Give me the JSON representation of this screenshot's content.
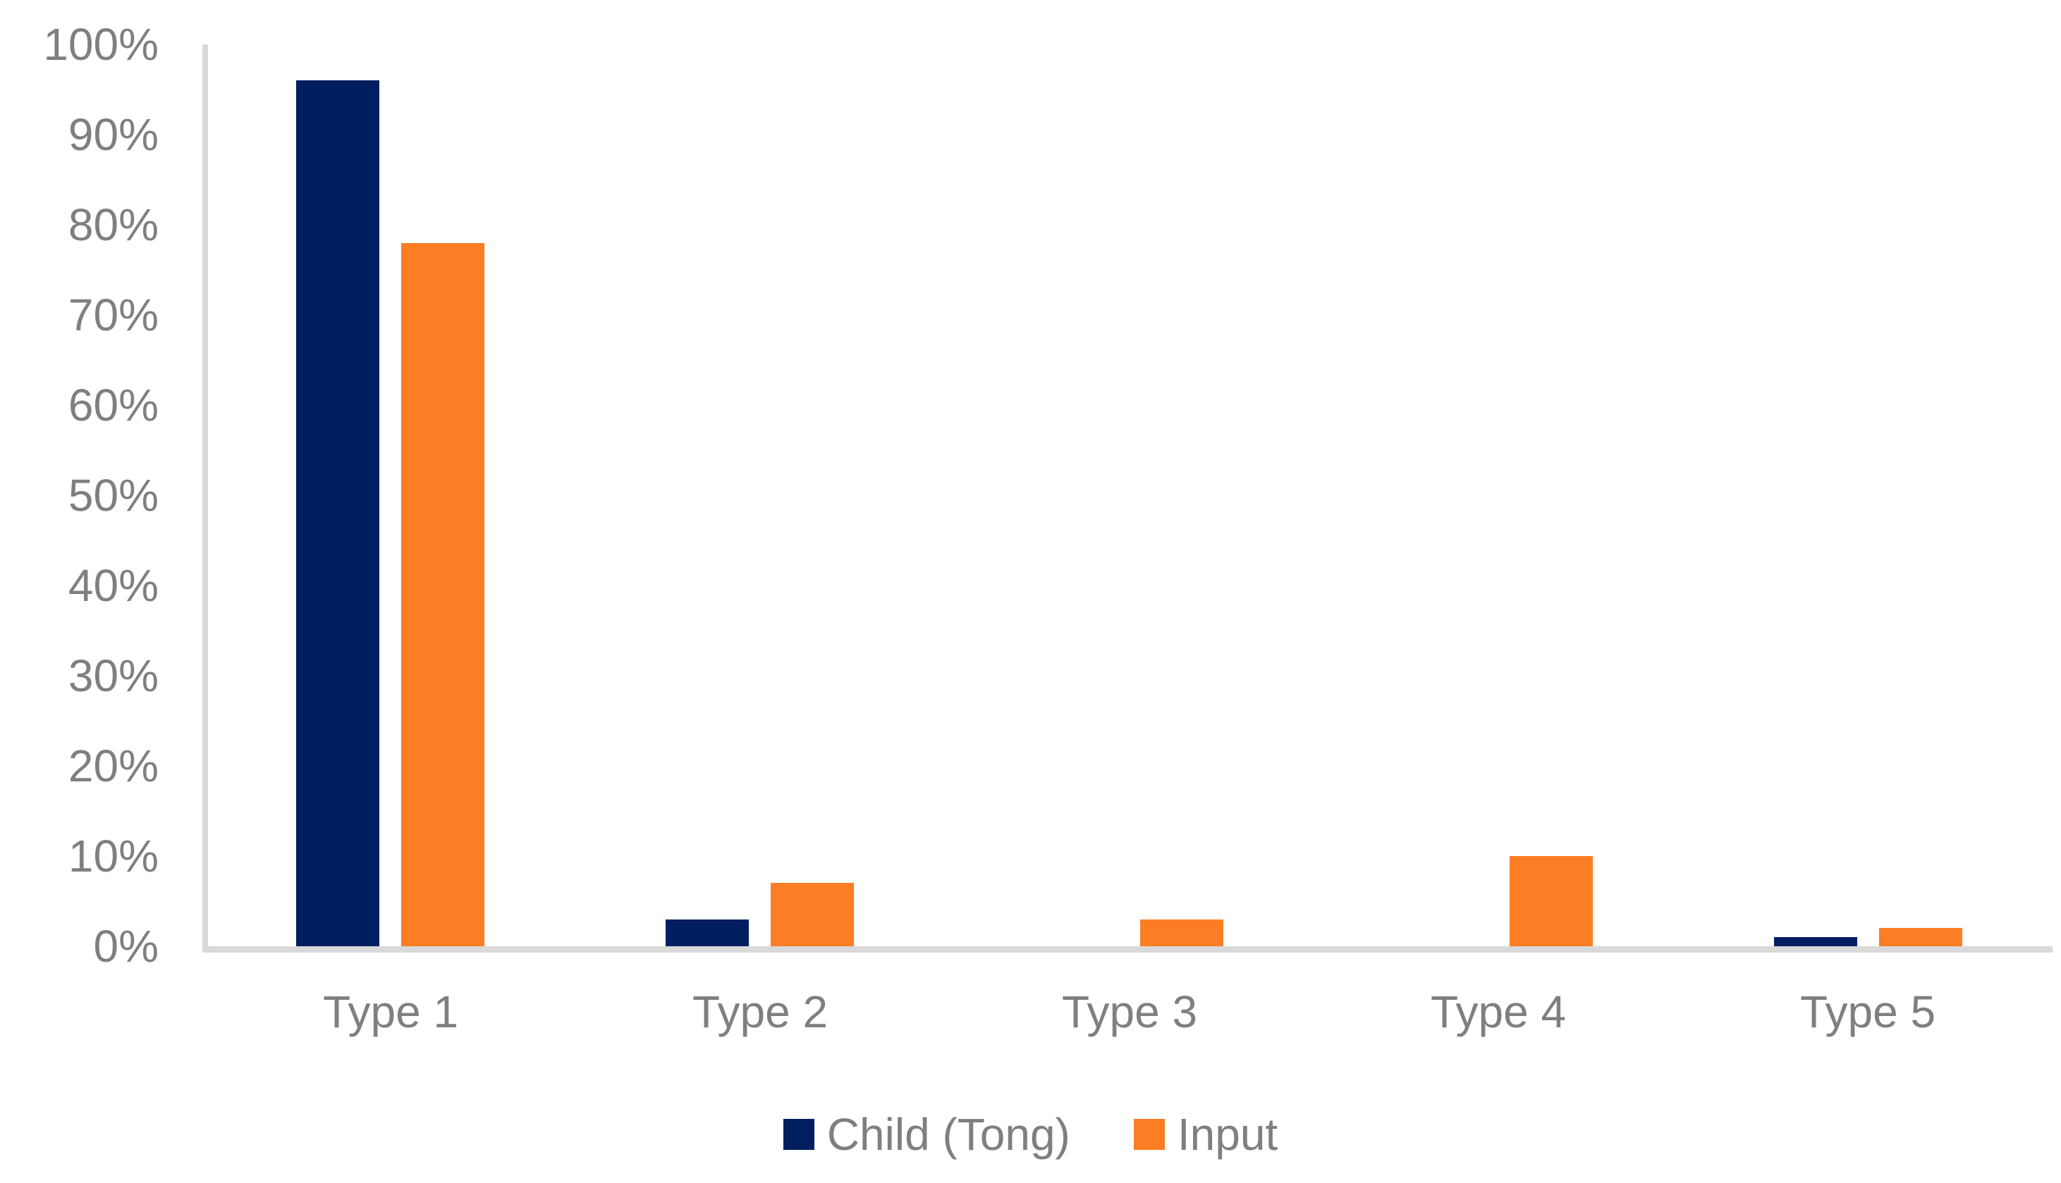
{
  "chart_data": {
    "type": "bar",
    "categories": [
      "Type 1",
      "Type 2",
      "Type 3",
      "Type 4",
      "Type 5"
    ],
    "series": [
      {
        "name": "Child (Tong)",
        "color": "#011F60",
        "values": [
          96,
          3,
          0,
          0,
          1
        ]
      },
      {
        "name": "Input",
        "color": "#FB7D24",
        "values": [
          78,
          7,
          3,
          10,
          2
        ]
      }
    ],
    "title": "",
    "xlabel": "",
    "ylabel": "",
    "ylim": [
      0,
      100
    ],
    "yticks": [
      0,
      10,
      20,
      30,
      40,
      50,
      60,
      70,
      80,
      90,
      100
    ],
    "ytick_labels": [
      "0%",
      "10%",
      "20%",
      "30%",
      "40%",
      "50%",
      "60%",
      "70%",
      "80%",
      "90%",
      "100%"
    ],
    "grid": false,
    "legend_position": "bottom-center"
  },
  "colors": {
    "axis_line": "#D9D9D9",
    "text": "#7F7F7F",
    "background": "#FFFFFF",
    "series_child_tong": "#011F60",
    "series_input": "#FB7D24"
  }
}
